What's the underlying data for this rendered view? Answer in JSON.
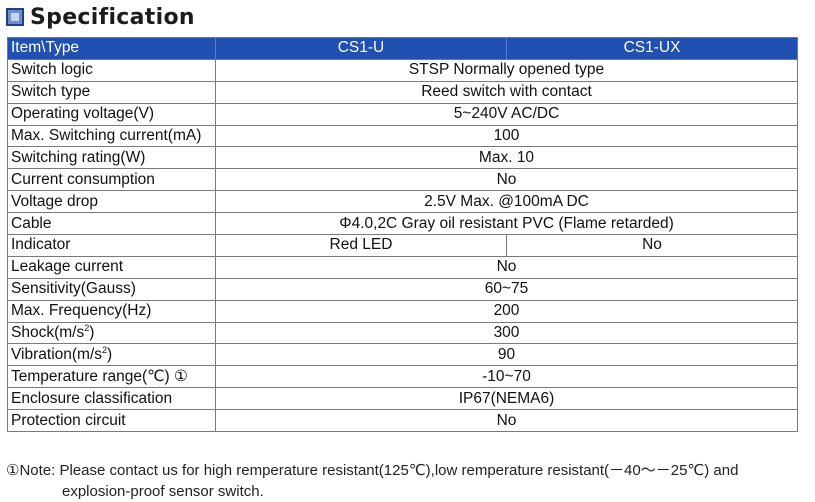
{
  "title": "Specification",
  "table": {
    "header": {
      "item": "Item\\Type",
      "col1": "CS1-U",
      "col2": "CS1-UX"
    },
    "rows": [
      {
        "label": "Switch logic",
        "value": "STSP Normally opened type"
      },
      {
        "label": "Switch type",
        "value": "Reed switch with contact"
      },
      {
        "label": "Operating voltage(V)",
        "value": "5~240V AC/DC"
      },
      {
        "label": "Max. Switching current(mA)",
        "value": "100"
      },
      {
        "label": "Switching rating(W)",
        "value": "Max. 10"
      },
      {
        "label": "Current consumption",
        "value": "No"
      },
      {
        "label": "Voltage drop",
        "value": "2.5V Max. @100mA DC"
      },
      {
        "label": "Cable",
        "value": "Φ4.0,2C Gray oil resistant PVC (Flame retarded)"
      },
      {
        "label": "Indicator",
        "value1": "Red LED",
        "value2": "No"
      },
      {
        "label": "Leakage current",
        "value": "No"
      },
      {
        "label": "Sensitivity(Gauss)",
        "value": "60~75"
      },
      {
        "label": "Max. Frequency(Hz)",
        "value": "200"
      },
      {
        "label": "Shock(m/s",
        "label_sup": "2",
        "label_after": ")",
        "value": "300"
      },
      {
        "label": "Vibration(m/s",
        "label_sup": "2",
        "label_after": ")",
        "value": "90"
      },
      {
        "label": "Temperature range(℃) ①",
        "value": "-10~70"
      },
      {
        "label": "Enclosure classification",
        "value": "IP67(NEMA6)"
      },
      {
        "label": "Protection circuit",
        "value": "No"
      }
    ]
  },
  "note": {
    "line1": "①Note: Please contact us for high remperature resistant(125℃),low remperature resistant(－40～－25℃) and",
    "line2": "explosion-proof sensor switch."
  }
}
